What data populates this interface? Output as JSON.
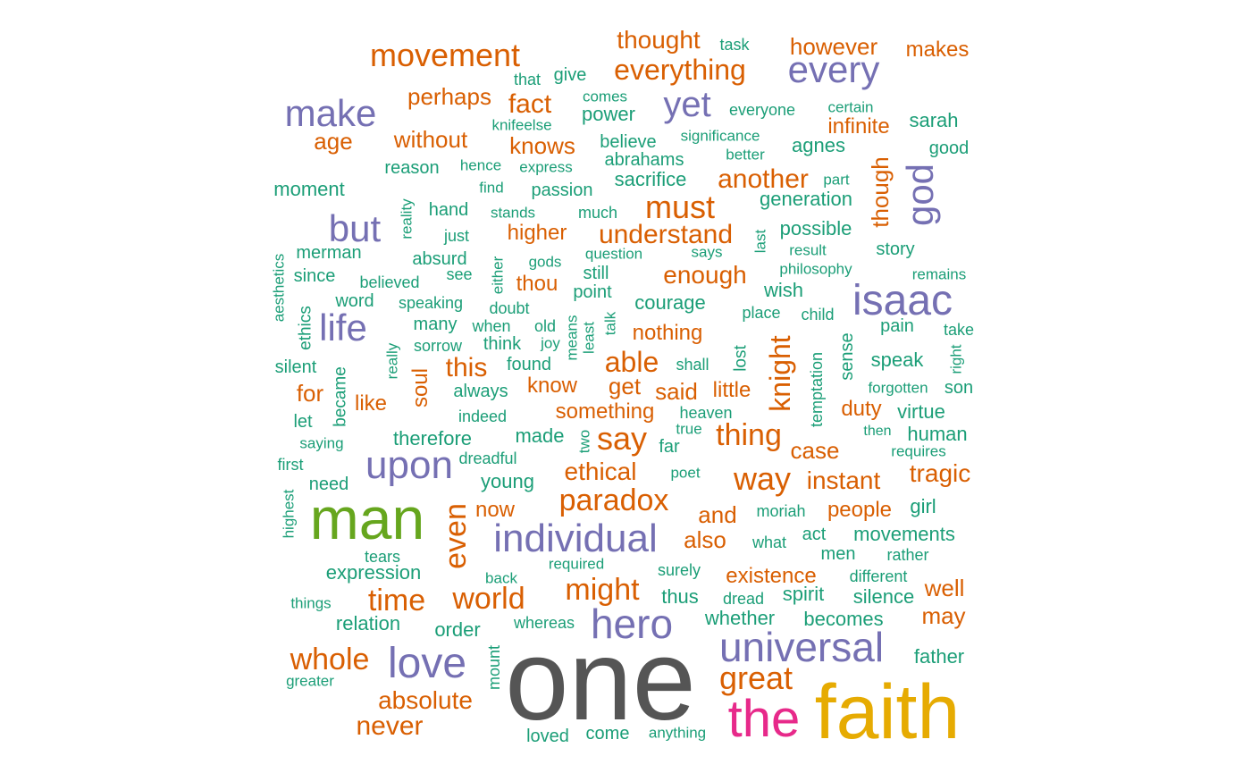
{
  "palette": {
    "green": "#1b9e77",
    "orange": "#d95f02",
    "purple": "#7570b3",
    "lime": "#66a61e",
    "gold": "#e6ab02",
    "magenta": "#e7298a",
    "gray": "#555555"
  },
  "words": [
    {
      "text": "one",
      "freq": 100,
      "color": "gray"
    },
    {
      "text": "faith",
      "freq": 88,
      "color": "gold"
    },
    {
      "text": "man",
      "freq": 80,
      "color": "lime"
    },
    {
      "text": "the",
      "freq": 62,
      "color": "magenta"
    },
    {
      "text": "isaac",
      "freq": 52,
      "color": "purple"
    },
    {
      "text": "universal",
      "freq": 50,
      "color": "purple"
    },
    {
      "text": "hero",
      "freq": 48,
      "color": "purple"
    },
    {
      "text": "love",
      "freq": 47,
      "color": "purple"
    },
    {
      "text": "upon",
      "freq": 45,
      "color": "purple"
    },
    {
      "text": "individual",
      "freq": 45,
      "color": "purple"
    },
    {
      "text": "every",
      "freq": 43,
      "color": "purple"
    },
    {
      "text": "make",
      "freq": 43,
      "color": "purple"
    },
    {
      "text": "life",
      "freq": 42,
      "color": "purple"
    },
    {
      "text": "but",
      "freq": 42,
      "color": "purple"
    },
    {
      "text": "god",
      "freq": 42,
      "color": "purple"
    },
    {
      "text": "yet",
      "freq": 41,
      "color": "purple"
    },
    {
      "text": "movement",
      "freq": 38,
      "color": "orange"
    },
    {
      "text": "whole",
      "freq": 37,
      "color": "orange"
    },
    {
      "text": "paradox",
      "freq": 36,
      "color": "orange"
    },
    {
      "text": "must",
      "freq": 36,
      "color": "orange"
    },
    {
      "text": "even",
      "freq": 36,
      "color": "orange"
    },
    {
      "text": "great",
      "freq": 36,
      "color": "orange"
    },
    {
      "text": "say",
      "freq": 36,
      "color": "orange"
    },
    {
      "text": "world",
      "freq": 34,
      "color": "orange"
    },
    {
      "text": "time",
      "freq": 34,
      "color": "orange"
    },
    {
      "text": "might",
      "freq": 34,
      "color": "orange"
    },
    {
      "text": "way",
      "freq": 34,
      "color": "orange"
    },
    {
      "text": "thing",
      "freq": 34,
      "color": "orange"
    },
    {
      "text": "knight",
      "freq": 33,
      "color": "orange"
    },
    {
      "text": "everything",
      "freq": 33,
      "color": "orange"
    },
    {
      "text": "never",
      "freq": 32,
      "color": "orange"
    },
    {
      "text": "able",
      "freq": 32,
      "color": "orange"
    },
    {
      "text": "this",
      "freq": 32,
      "color": "orange"
    },
    {
      "text": "understand",
      "freq": 32,
      "color": "orange"
    },
    {
      "text": "another",
      "freq": 32,
      "color": "orange"
    },
    {
      "text": "absolute",
      "freq": 30,
      "color": "orange"
    },
    {
      "text": "fact",
      "freq": 30,
      "color": "orange"
    },
    {
      "text": "thought",
      "freq": 30,
      "color": "orange"
    },
    {
      "text": "enough",
      "freq": 30,
      "color": "orange"
    },
    {
      "text": "ethical",
      "freq": 30,
      "color": "orange"
    },
    {
      "text": "tragic",
      "freq": 30,
      "color": "orange"
    },
    {
      "text": "instant",
      "freq": 30,
      "color": "orange"
    },
    {
      "text": "though",
      "freq": 29,
      "color": "orange"
    },
    {
      "text": "however",
      "freq": 28,
      "color": "orange"
    },
    {
      "text": "perhaps",
      "freq": 28,
      "color": "orange"
    },
    {
      "text": "knows",
      "freq": 28,
      "color": "orange"
    },
    {
      "text": "without",
      "freq": 28,
      "color": "orange"
    },
    {
      "text": "age",
      "freq": 28,
      "color": "orange"
    },
    {
      "text": "also",
      "freq": 28,
      "color": "orange"
    },
    {
      "text": "case",
      "freq": 28,
      "color": "orange"
    },
    {
      "text": "may",
      "freq": 28,
      "color": "orange"
    },
    {
      "text": "well",
      "freq": 28,
      "color": "orange"
    },
    {
      "text": "get",
      "freq": 28,
      "color": "orange"
    },
    {
      "text": "said",
      "freq": 28,
      "color": "orange"
    },
    {
      "text": "for",
      "freq": 28,
      "color": "orange"
    },
    {
      "text": "makes",
      "freq": 26,
      "color": "orange"
    },
    {
      "text": "infinite",
      "freq": 26,
      "color": "orange"
    },
    {
      "text": "soul",
      "freq": 26,
      "color": "orange"
    },
    {
      "text": "and",
      "freq": 26,
      "color": "orange"
    },
    {
      "text": "existence",
      "freq": 26,
      "color": "orange"
    },
    {
      "text": "know",
      "freq": 26,
      "color": "orange"
    },
    {
      "text": "something",
      "freq": 25,
      "color": "orange"
    },
    {
      "text": "nothing",
      "freq": 25,
      "color": "orange"
    },
    {
      "text": "higher",
      "freq": 25,
      "color": "orange"
    },
    {
      "text": "thou",
      "freq": 25,
      "color": "orange"
    },
    {
      "text": "like",
      "freq": 25,
      "color": "orange"
    },
    {
      "text": "little",
      "freq": 25,
      "color": "orange"
    },
    {
      "text": "duty",
      "freq": 25,
      "color": "orange"
    },
    {
      "text": "people",
      "freq": 25,
      "color": "orange"
    },
    {
      "text": "now",
      "freq": 25,
      "color": "orange"
    },
    {
      "text": "agnes",
      "freq": 24,
      "color": "green"
    },
    {
      "text": "sarah",
      "freq": 23,
      "color": "green"
    },
    {
      "text": "sacrifice",
      "freq": 23,
      "color": "green"
    },
    {
      "text": "generation",
      "freq": 23,
      "color": "green"
    },
    {
      "text": "possible",
      "freq": 23,
      "color": "green"
    },
    {
      "text": "courage",
      "freq": 23,
      "color": "green"
    },
    {
      "text": "wish",
      "freq": 23,
      "color": "green"
    },
    {
      "text": "speak",
      "freq": 23,
      "color": "green"
    },
    {
      "text": "virtue",
      "freq": 23,
      "color": "green"
    },
    {
      "text": "human",
      "freq": 23,
      "color": "green"
    },
    {
      "text": "therefore",
      "freq": 23,
      "color": "green"
    },
    {
      "text": "made",
      "freq": 23,
      "color": "green"
    },
    {
      "text": "young",
      "freq": 23,
      "color": "green"
    },
    {
      "text": "girl",
      "freq": 23,
      "color": "green"
    },
    {
      "text": "movements",
      "freq": 22,
      "color": "green"
    },
    {
      "text": "expression",
      "freq": 22,
      "color": "green"
    },
    {
      "text": "relation",
      "freq": 22,
      "color": "green"
    },
    {
      "text": "thus",
      "freq": 22,
      "color": "green"
    },
    {
      "text": "spirit",
      "freq": 22,
      "color": "green"
    },
    {
      "text": "silence",
      "freq": 22,
      "color": "green"
    },
    {
      "text": "whether",
      "freq": 22,
      "color": "green"
    },
    {
      "text": "becomes",
      "freq": 22,
      "color": "green"
    },
    {
      "text": "father",
      "freq": 22,
      "color": "green"
    },
    {
      "text": "order",
      "freq": 22,
      "color": "green"
    },
    {
      "text": "moment",
      "freq": 22,
      "color": "green"
    },
    {
      "text": "power",
      "freq": 22,
      "color": "green"
    },
    {
      "text": "good",
      "freq": 21,
      "color": "green"
    },
    {
      "text": "reason",
      "freq": 21,
      "color": "green"
    },
    {
      "text": "passion",
      "freq": 21,
      "color": "green"
    },
    {
      "text": "hand",
      "freq": 21,
      "color": "green"
    },
    {
      "text": "merman",
      "freq": 21,
      "color": "green"
    },
    {
      "text": "absurd",
      "freq": 21,
      "color": "green"
    },
    {
      "text": "still",
      "freq": 21,
      "color": "green"
    },
    {
      "text": "point",
      "freq": 21,
      "color": "green"
    },
    {
      "text": "story",
      "freq": 21,
      "color": "green"
    },
    {
      "text": "word",
      "freq": 21,
      "color": "green"
    },
    {
      "text": "many",
      "freq": 21,
      "color": "green"
    },
    {
      "text": "think",
      "freq": 21,
      "color": "green"
    },
    {
      "text": "found",
      "freq": 20,
      "color": "green"
    },
    {
      "text": "always",
      "freq": 20,
      "color": "green"
    },
    {
      "text": "pain",
      "freq": 20,
      "color": "green"
    },
    {
      "text": "son",
      "freq": 20,
      "color": "green"
    },
    {
      "text": "act",
      "freq": 20,
      "color": "green"
    },
    {
      "text": "men",
      "freq": 20,
      "color": "green"
    },
    {
      "text": "give",
      "freq": 20,
      "color": "green"
    },
    {
      "text": "believe",
      "freq": 20,
      "color": "green"
    },
    {
      "text": "abrahams",
      "freq": 20,
      "color": "green"
    },
    {
      "text": "silent",
      "freq": 20,
      "color": "green"
    },
    {
      "text": "let",
      "freq": 20,
      "color": "green"
    },
    {
      "text": "since",
      "freq": 20,
      "color": "green"
    },
    {
      "text": "need",
      "freq": 20,
      "color": "green"
    },
    {
      "text": "far",
      "freq": 20,
      "color": "green"
    },
    {
      "text": "loved",
      "freq": 20,
      "color": "green"
    },
    {
      "text": "come",
      "freq": 20,
      "color": "green"
    },
    {
      "text": "everyone",
      "freq": 19,
      "color": "green"
    },
    {
      "text": "sorrow",
      "freq": 19,
      "color": "green"
    },
    {
      "text": "indeed",
      "freq": 19,
      "color": "green"
    },
    {
      "text": "dreadful",
      "freq": 19,
      "color": "green"
    },
    {
      "text": "much",
      "freq": 19,
      "color": "green"
    },
    {
      "text": "just",
      "freq": 19,
      "color": "green"
    },
    {
      "text": "shall",
      "freq": 19,
      "color": "green"
    },
    {
      "text": "heaven",
      "freq": 19,
      "color": "green"
    },
    {
      "text": "place",
      "freq": 19,
      "color": "green"
    },
    {
      "text": "child",
      "freq": 19,
      "color": "green"
    },
    {
      "text": "rather",
      "freq": 19,
      "color": "green"
    },
    {
      "text": "take",
      "freq": 19,
      "color": "green"
    },
    {
      "text": "see",
      "freq": 19,
      "color": "green"
    },
    {
      "text": "when",
      "freq": 19,
      "color": "green"
    },
    {
      "text": "old",
      "freq": 19,
      "color": "green"
    },
    {
      "text": "doubt",
      "freq": 19,
      "color": "green"
    },
    {
      "text": "speaking",
      "freq": 19,
      "color": "green"
    },
    {
      "text": "believed",
      "freq": 19,
      "color": "green"
    },
    {
      "text": "first",
      "freq": 19,
      "color": "green"
    },
    {
      "text": "tears",
      "freq": 19,
      "color": "green"
    },
    {
      "text": "what",
      "freq": 19,
      "color": "green"
    },
    {
      "text": "moriah",
      "freq": 19,
      "color": "green"
    },
    {
      "text": "surely",
      "freq": 19,
      "color": "green"
    },
    {
      "text": "dread",
      "freq": 19,
      "color": "green"
    },
    {
      "text": "different",
      "freq": 19,
      "color": "green"
    },
    {
      "text": "whereas",
      "freq": 19,
      "color": "green"
    },
    {
      "text": "then",
      "freq": 18,
      "color": "green"
    },
    {
      "text": "that",
      "freq": 18,
      "color": "green"
    },
    {
      "text": "comes",
      "freq": 18,
      "color": "green"
    },
    {
      "text": "significance",
      "freq": 18,
      "color": "green"
    },
    {
      "text": "better",
      "freq": 18,
      "color": "green"
    },
    {
      "text": "certain",
      "freq": 18,
      "color": "green"
    },
    {
      "text": "task",
      "freq": 18,
      "color": "green"
    },
    {
      "text": "knifeelse",
      "freq": 18,
      "color": "green"
    },
    {
      "text": "express",
      "freq": 18,
      "color": "green"
    },
    {
      "text": "hence",
      "freq": 18,
      "color": "green"
    },
    {
      "text": "find",
      "freq": 18,
      "color": "green"
    },
    {
      "text": "stands",
      "freq": 18,
      "color": "green"
    },
    {
      "text": "says",
      "freq": 18,
      "color": "green"
    },
    {
      "text": "question",
      "freq": 18,
      "color": "green"
    },
    {
      "text": "result",
      "freq": 18,
      "color": "green"
    },
    {
      "text": "philosophy",
      "freq": 18,
      "color": "green"
    },
    {
      "text": "remains",
      "freq": 18,
      "color": "green"
    },
    {
      "text": "gods",
      "freq": 18,
      "color": "green"
    },
    {
      "text": "forgotten",
      "freq": 18,
      "color": "green"
    },
    {
      "text": "joy",
      "freq": 18,
      "color": "green"
    },
    {
      "text": "true",
      "freq": 18,
      "color": "green"
    },
    {
      "text": "requires",
      "freq": 18,
      "color": "green"
    },
    {
      "text": "saying",
      "freq": 18,
      "color": "green"
    },
    {
      "text": "poet",
      "freq": 18,
      "color": "green"
    },
    {
      "text": "greater",
      "freq": 18,
      "color": "green"
    },
    {
      "text": "things",
      "freq": 18,
      "color": "green"
    },
    {
      "text": "required",
      "freq": 18,
      "color": "green"
    },
    {
      "text": "back",
      "freq": 18,
      "color": "green"
    },
    {
      "text": "anything",
      "freq": 18,
      "color": "green"
    },
    {
      "text": "part",
      "freq": 18,
      "color": "green"
    },
    {
      "text": "mount",
      "freq": 18,
      "color": "green"
    },
    {
      "text": "became",
      "freq": 19,
      "color": "green"
    },
    {
      "text": "really",
      "freq": 18,
      "color": "green"
    },
    {
      "text": "means",
      "freq": 18,
      "color": "green"
    },
    {
      "text": "least",
      "freq": 18,
      "color": "green"
    },
    {
      "text": "talk",
      "freq": 18,
      "color": "green"
    },
    {
      "text": "two",
      "freq": 18,
      "color": "green"
    },
    {
      "text": "either",
      "freq": 18,
      "color": "green"
    },
    {
      "text": "reality",
      "freq": 18,
      "color": "green"
    },
    {
      "text": "ethics",
      "freq": 19,
      "color": "green"
    },
    {
      "text": "aesthetics",
      "freq": 18,
      "color": "green"
    },
    {
      "text": "highest",
      "freq": 18,
      "color": "green"
    },
    {
      "text": "last",
      "freq": 18,
      "color": "green"
    },
    {
      "text": "lost",
      "freq": 19,
      "color": "green"
    },
    {
      "text": "temptation",
      "freq": 19,
      "color": "green"
    },
    {
      "text": "sense",
      "freq": 20,
      "color": "green"
    },
    {
      "text": "right",
      "freq": 18,
      "color": "green"
    }
  ]
}
